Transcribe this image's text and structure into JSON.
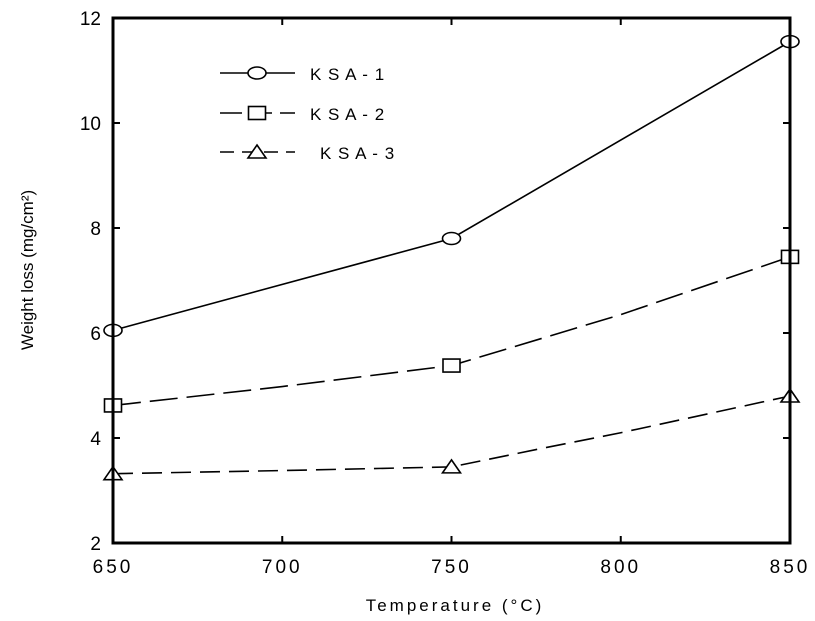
{
  "chart_data": {
    "type": "line",
    "xlabel": "Temperature (°C)",
    "ylabel": "Weight loss (mg/cm²)",
    "xlim": [
      650,
      850
    ],
    "ylim": [
      2,
      12
    ],
    "x_ticks": [
      "650",
      "700",
      "750",
      "800",
      "850"
    ],
    "y_ticks": [
      "2",
      "4",
      "6",
      "8",
      "10",
      "12"
    ],
    "legend_position": "top-left",
    "series": [
      {
        "name": "K S A - 1",
        "marker": "circle",
        "line_style": "solid",
        "color": "#000000",
        "points": [
          [
            650,
            6.05
          ],
          [
            750,
            7.8
          ],
          [
            850,
            11.55
          ]
        ],
        "curve": [
          [
            650,
            6.05
          ],
          [
            750,
            7.8
          ],
          [
            850,
            11.55
          ]
        ]
      },
      {
        "name": "K S A - 2",
        "marker": "square",
        "line_style": "long-dash",
        "color": "#000000",
        "points": [
          [
            650,
            4.62
          ],
          [
            750,
            5.38
          ],
          [
            850,
            7.45
          ]
        ],
        "curve": [
          [
            650,
            4.62
          ],
          [
            700,
            4.98
          ],
          [
            750,
            5.38
          ],
          [
            800,
            6.35
          ],
          [
            850,
            7.45
          ]
        ]
      },
      {
        "name": "K S A - 3",
        "marker": "triangle",
        "line_style": "dash",
        "color": "#000000",
        "points": [
          [
            650,
            3.32
          ],
          [
            750,
            3.45
          ],
          [
            850,
            4.8
          ]
        ],
        "curve": [
          [
            650,
            3.32
          ],
          [
            700,
            3.38
          ],
          [
            750,
            3.45
          ],
          [
            775,
            3.78
          ],
          [
            800,
            4.1
          ],
          [
            850,
            4.8
          ]
        ]
      }
    ]
  }
}
